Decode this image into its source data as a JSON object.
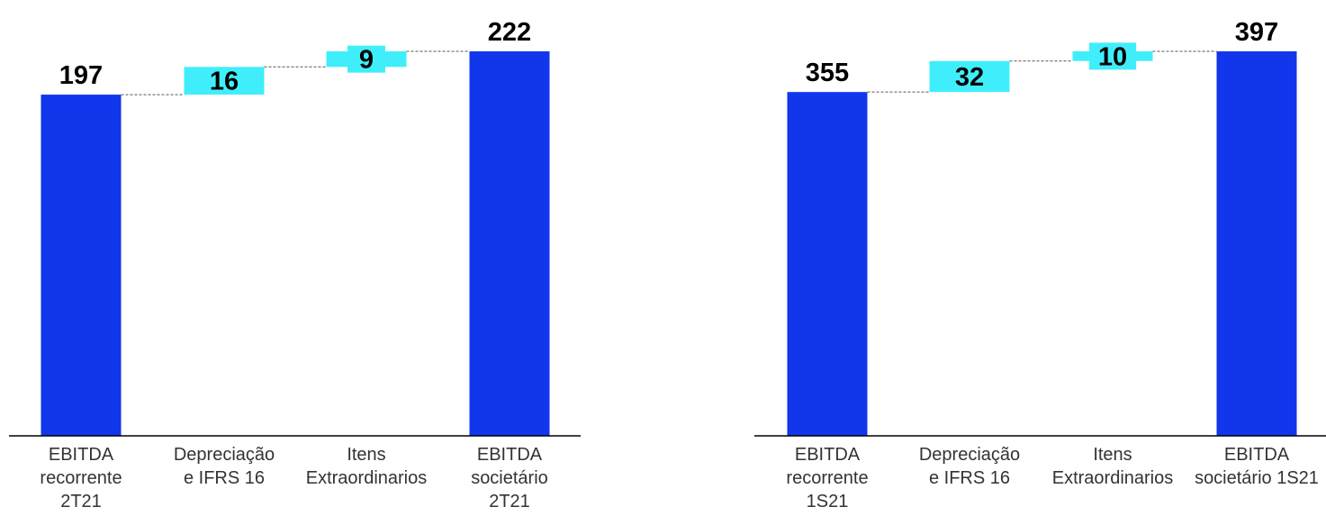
{
  "colors": {
    "total": "#1136EC",
    "step": "#40EEFB",
    "axis": "#000000",
    "connector": "#555555",
    "category_text": "#333333",
    "value_text": "#000000"
  },
  "chart_data": [
    {
      "type": "bar",
      "subtype": "waterfall",
      "grid": false,
      "legend": "none",
      "ylim": [
        0,
        222
      ],
      "categories": [
        [
          "EBITDA",
          "recorrente",
          "2T21"
        ],
        [
          "Depreciação",
          "e IFRS 16"
        ],
        [
          "Itens",
          "Extraordinarios"
        ],
        [
          "EBITDA",
          "societário",
          "2T21"
        ]
      ],
      "values": [
        197,
        16,
        9,
        222
      ],
      "kinds": [
        "total",
        "step",
        "step",
        "total"
      ],
      "labels": [
        "197",
        "16",
        "9",
        "222"
      ]
    },
    {
      "type": "bar",
      "subtype": "waterfall",
      "grid": false,
      "legend": "none",
      "ylim": [
        0,
        397
      ],
      "categories": [
        [
          "EBITDA",
          "recorrente",
          "1S21"
        ],
        [
          "Depreciação",
          "e IFRS 16"
        ],
        [
          "Itens",
          "Extraordinarios"
        ],
        [
          "EBITDA",
          "societário 1S21"
        ]
      ],
      "values": [
        355,
        32,
        10,
        397
      ],
      "kinds": [
        "total",
        "step",
        "step",
        "total"
      ],
      "labels": [
        "355",
        "32",
        "10",
        "397"
      ]
    }
  ]
}
